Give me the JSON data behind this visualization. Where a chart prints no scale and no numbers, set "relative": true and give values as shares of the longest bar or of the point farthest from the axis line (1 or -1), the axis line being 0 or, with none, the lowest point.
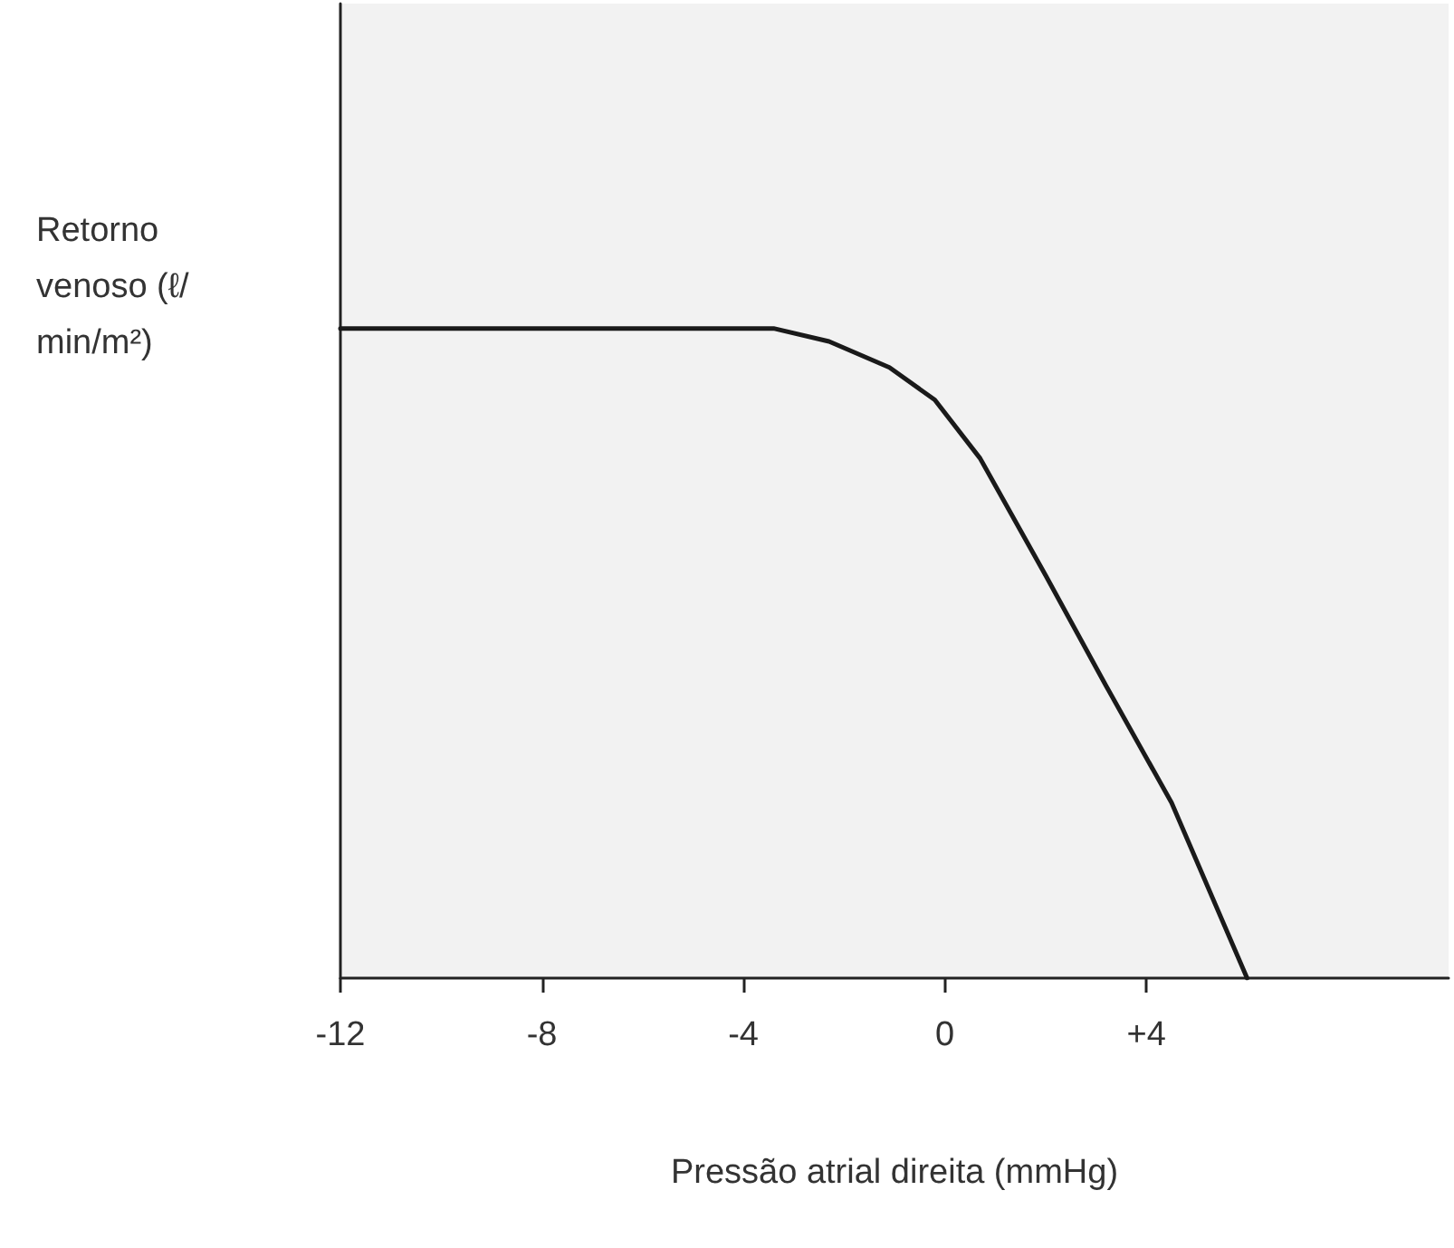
{
  "chart_data": {
    "type": "line",
    "relative": true,
    "xlabel": "Pressão atrial direita (mmHg)",
    "ylabel": "Retorno venoso (ℓ/min/m²)",
    "xlim": [
      -12,
      10
    ],
    "xticks": [
      -12,
      -8,
      -4,
      0,
      {
        "value": 4,
        "label": "+4"
      }
    ],
    "tick_labels": "x",
    "grid": false,
    "marker": "none",
    "line_style": "solid",
    "series": [
      {
        "color": "#1a1a1a",
        "x": [
          -12,
          -3.4,
          -2.3,
          -1.1,
          -0.2,
          0.7,
          2.0,
          3.2,
          4.5,
          6.0
        ],
        "values": [
          1,
          1,
          0.98,
          0.94,
          0.89,
          0.8,
          0.62,
          0.45,
          0.27,
          0
        ]
      }
    ]
  }
}
